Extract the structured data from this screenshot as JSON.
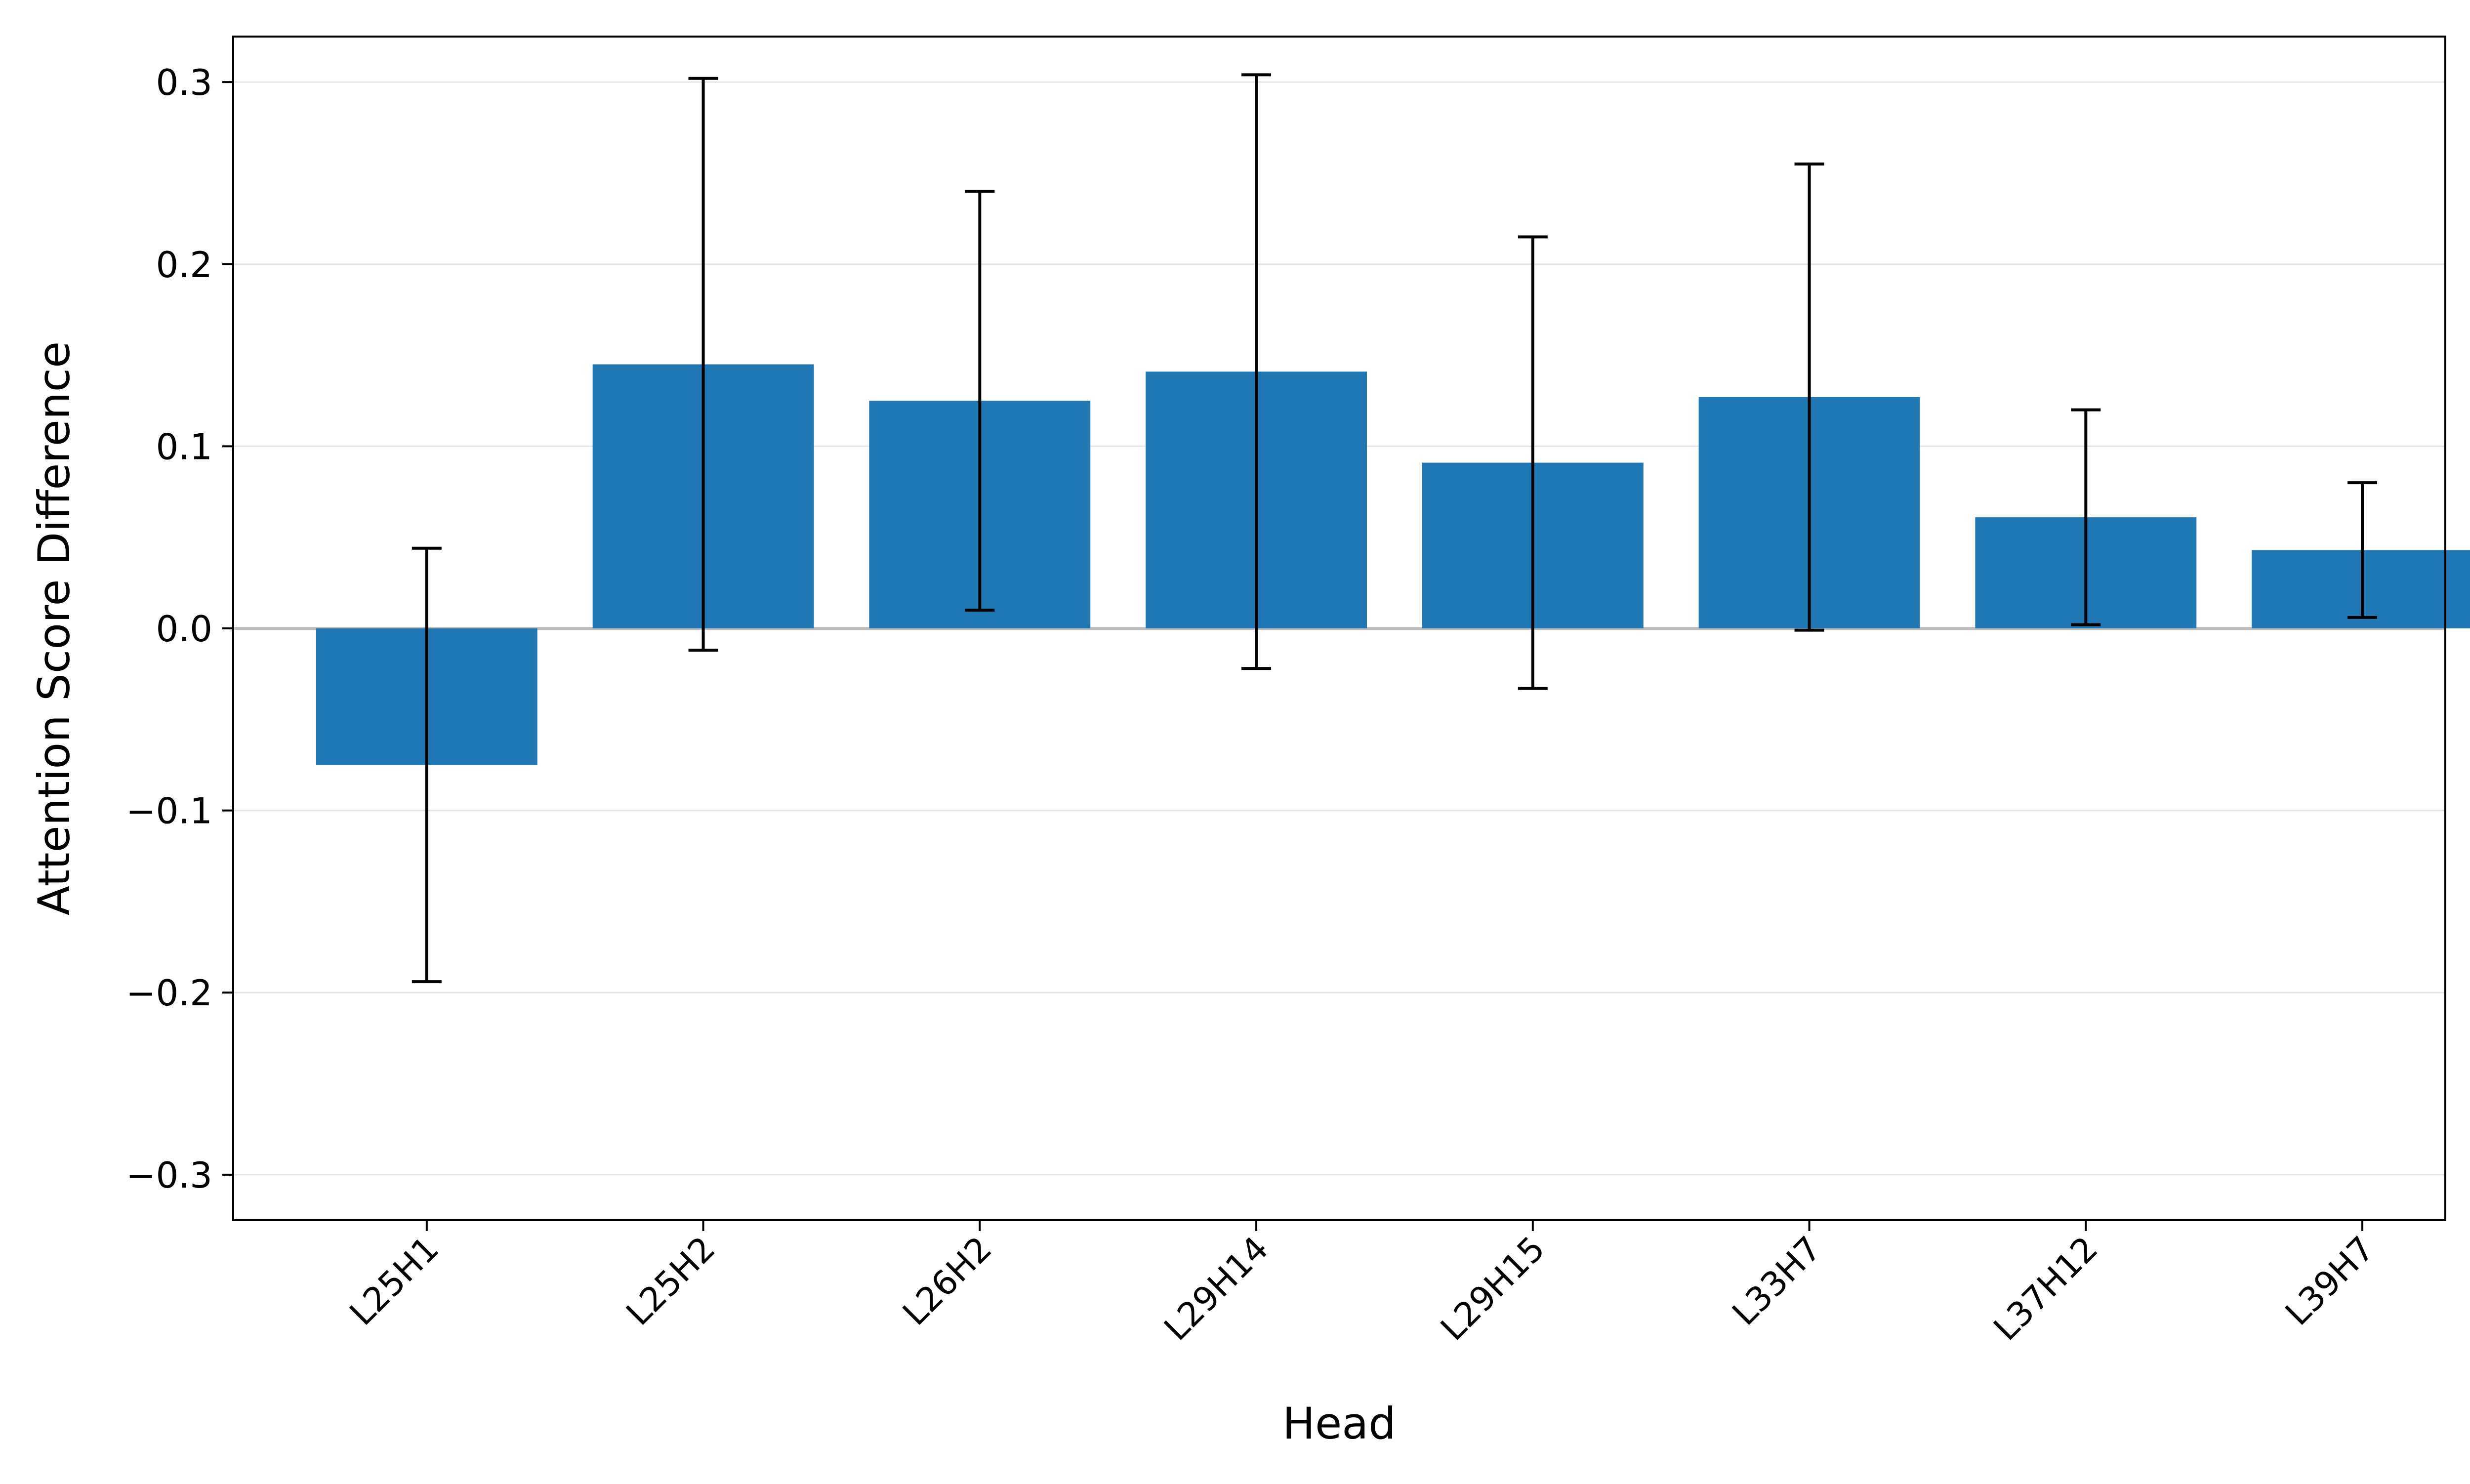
{
  "chart_data": {
    "type": "bar",
    "categories": [
      "L25H1",
      "L25H2",
      "L26H2",
      "L29H14",
      "L29H15",
      "L33H7",
      "L37H12",
      "L39H7"
    ],
    "values": [
      -0.075,
      0.145,
      0.125,
      0.141,
      0.091,
      0.127,
      0.061,
      0.043
    ],
    "errors": [
      0.119,
      0.157,
      0.115,
      0.163,
      0.124,
      0.128,
      0.059,
      0.037
    ],
    "title": "",
    "xlabel": "Head",
    "ylabel": "Attention Score Difference",
    "ylim": [
      -0.325,
      0.325
    ],
    "yticks": [
      -0.3,
      -0.2,
      -0.1,
      0.0,
      0.1,
      0.2,
      0.3
    ],
    "ytick_labels": [
      "−0.3",
      "−0.2",
      "−0.1",
      "0.0",
      "0.1",
      "0.2",
      "0.3"
    ],
    "grid": "horizontal",
    "zero_line": true,
    "legend": "none",
    "bar_color": "#1f77b4",
    "error_color": "#000000",
    "grid_color": "#e6e6e6",
    "zero_line_color": "#bfbfbf"
  }
}
